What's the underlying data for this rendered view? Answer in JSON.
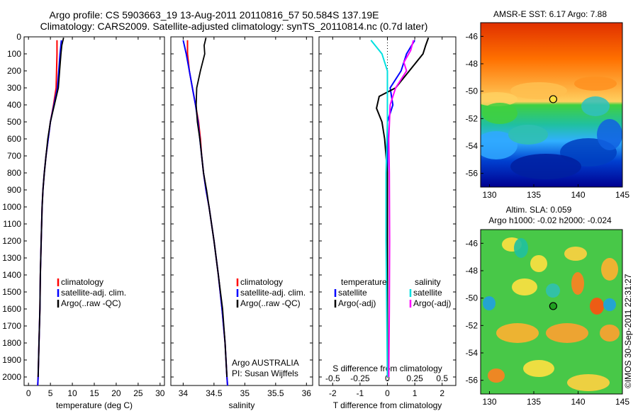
{
  "header": {
    "title_line1": "Argo profile: CS 5903663_19 13-Aug-2011 20110816_57 50.584S 137.19E",
    "title_line2": "Climatology: CARS2009. Satellite-adjusted climatology: synTS_20110814.nc (0.7d later)"
  },
  "annotations": {
    "argo_country": "Argo AUSTRALIA",
    "pi": "PI: Susan Wijffels",
    "watermark": "©IMOS 30-Sep-2011 22:31:27"
  },
  "colors": {
    "climatology": "#ff0000",
    "satellite": "#0000ff",
    "argo": "#000000",
    "t_sat": "#0000ff",
    "t_argo": "#000000",
    "s_sat": "#00e0e0",
    "s_argo": "#ff00ff"
  },
  "chart_data": [
    {
      "type": "line",
      "panel": "temperature",
      "xlabel": "temperature (deg C)",
      "ylabel": "",
      "xlim": [
        -1,
        31
      ],
      "ylim": [
        2050,
        0
      ],
      "xticks": [
        0,
        5,
        10,
        15,
        20,
        25,
        30
      ],
      "yticks": [
        0,
        100,
        200,
        300,
        400,
        500,
        600,
        700,
        800,
        900,
        1000,
        1100,
        1200,
        1300,
        1400,
        1500,
        1600,
        1700,
        1800,
        1900,
        2000
      ],
      "legend": [
        "climatology",
        "satellite-adj. clim.",
        "Argo(..raw -QC)"
      ],
      "series": [
        {
          "name": "climatology",
          "points": [
            [
              6.5,
              20
            ],
            [
              6.5,
              100
            ],
            [
              6.4,
              200
            ],
            [
              6.3,
              300
            ],
            [
              5.7,
              400
            ],
            [
              5.0,
              500
            ],
            [
              4.5,
              600
            ],
            [
              4.0,
              700
            ],
            [
              3.6,
              800
            ],
            [
              3.3,
              900
            ],
            [
              3.1,
              1000
            ],
            [
              2.9,
              1200
            ],
            [
              2.7,
              1400
            ],
            [
              2.6,
              1600
            ],
            [
              2.4,
              1800
            ],
            [
              2.2,
              2000
            ],
            [
              2.1,
              2050
            ]
          ]
        },
        {
          "name": "satellite-adj. clim.",
          "points": [
            [
              7.5,
              20
            ],
            [
              7.2,
              100
            ],
            [
              6.9,
              200
            ],
            [
              6.6,
              300
            ],
            [
              5.8,
              400
            ],
            [
              5.0,
              500
            ],
            [
              4.5,
              600
            ],
            [
              4.0,
              700
            ],
            [
              3.6,
              800
            ],
            [
              3.3,
              900
            ],
            [
              3.1,
              1000
            ],
            [
              2.9,
              1200
            ],
            [
              2.7,
              1400
            ],
            [
              2.6,
              1600
            ],
            [
              2.4,
              1800
            ],
            [
              2.2,
              2000
            ],
            [
              2.1,
              2050
            ]
          ]
        },
        {
          "name": "Argo(..raw -QC)",
          "points": [
            [
              8.0,
              5
            ],
            [
              7.6,
              50
            ],
            [
              7.4,
              100
            ],
            [
              7.1,
              200
            ],
            [
              6.8,
              300
            ],
            [
              5.9,
              400
            ],
            [
              5.0,
              500
            ],
            [
              4.4,
              600
            ],
            [
              4.0,
              700
            ],
            [
              3.6,
              800
            ],
            [
              3.3,
              900
            ],
            [
              3.1,
              1000
            ],
            [
              2.9,
              1200
            ],
            [
              2.7,
              1400
            ],
            [
              2.6,
              1600
            ],
            [
              2.4,
              1800
            ],
            [
              2.2,
              2000
            ]
          ]
        }
      ]
    },
    {
      "type": "line",
      "panel": "salinity",
      "xlabel": "salinity",
      "xlim": [
        33.8,
        36.1
      ],
      "ylim": [
        2050,
        0
      ],
      "xticks": [
        34,
        34.5,
        35,
        35.5,
        36
      ],
      "legend": [
        "climatology",
        "satellite-adj. clim.",
        "Argo(..raw -QC)"
      ],
      "series": [
        {
          "name": "climatology",
          "points": [
            [
              34.07,
              20
            ],
            [
              34.07,
              100
            ],
            [
              34.1,
              200
            ],
            [
              34.15,
              300
            ],
            [
              34.2,
              400
            ],
            [
              34.25,
              500
            ],
            [
              34.28,
              600
            ],
            [
              34.3,
              700
            ],
            [
              34.33,
              800
            ],
            [
              34.37,
              900
            ],
            [
              34.42,
              1000
            ],
            [
              34.5,
              1200
            ],
            [
              34.57,
              1400
            ],
            [
              34.63,
              1600
            ],
            [
              34.68,
              1800
            ],
            [
              34.71,
              2000
            ],
            [
              34.72,
              2050
            ]
          ]
        },
        {
          "name": "satellite-adj. clim.",
          "points": [
            [
              34.0,
              20
            ],
            [
              34.05,
              100
            ],
            [
              34.1,
              200
            ],
            [
              34.15,
              300
            ],
            [
              34.2,
              400
            ],
            [
              34.24,
              500
            ],
            [
              34.27,
              600
            ],
            [
              34.3,
              700
            ],
            [
              34.33,
              800
            ],
            [
              34.37,
              900
            ],
            [
              34.42,
              1000
            ],
            [
              34.5,
              1200
            ],
            [
              34.57,
              1400
            ],
            [
              34.63,
              1600
            ],
            [
              34.68,
              1800
            ],
            [
              34.71,
              2000
            ],
            [
              34.72,
              2050
            ]
          ]
        },
        {
          "name": "Argo(..raw -QC)",
          "points": [
            [
              34.37,
              5
            ],
            [
              34.34,
              50
            ],
            [
              34.35,
              100
            ],
            [
              34.28,
              200
            ],
            [
              34.22,
              300
            ],
            [
              34.21,
              400
            ],
            [
              34.23,
              500
            ],
            [
              34.27,
              600
            ],
            [
              34.3,
              700
            ],
            [
              34.33,
              800
            ],
            [
              34.38,
              900
            ],
            [
              34.42,
              1000
            ],
            [
              34.5,
              1200
            ],
            [
              34.57,
              1400
            ],
            [
              34.64,
              1600
            ],
            [
              34.68,
              1800
            ],
            [
              34.71,
              2000
            ]
          ]
        }
      ]
    },
    {
      "type": "line",
      "panel": "difference",
      "xlabel": "T difference from climatology",
      "x2label": "S difference from climatology",
      "xlim": [
        -2.5,
        2.5
      ],
      "ylim": [
        2050,
        0
      ],
      "xticks": [
        -2,
        -1,
        0,
        1,
        2
      ],
      "x2ticks": [
        "-0.5",
        "-0.25",
        "0",
        "0.25",
        "0.5"
      ],
      "legend_title_t": "temperature",
      "legend_title_s": "salinity",
      "legend": [
        "satellite",
        "Argo(-adj)",
        "satellite",
        "Argo(-adj)"
      ],
      "series": [
        {
          "name": "satellite",
          "points": [
            [
              1.0,
              20
            ],
            [
              0.7,
              100
            ],
            [
              0.5,
              200
            ],
            [
              0.1,
              300
            ],
            [
              0.2,
              400
            ],
            [
              0.0,
              500
            ],
            [
              0.0,
              700
            ],
            [
              0.0,
              1000
            ],
            [
              0.0,
              2000
            ]
          ]
        },
        {
          "name": "Argo(-adj)",
          "points": [
            [
              1.5,
              5
            ],
            [
              1.4,
              50
            ],
            [
              1.3,
              100
            ],
            [
              0.8,
              200
            ],
            [
              0.3,
              300
            ],
            [
              -0.3,
              350
            ],
            [
              -0.4,
              420
            ],
            [
              -0.2,
              500
            ],
            [
              -0.1,
              600
            ],
            [
              0.0,
              800
            ],
            [
              0.0,
              1000
            ],
            [
              0.0,
              2000
            ]
          ]
        },
        {
          "name": "satellite",
          "points": [
            [
              -0.6,
              20
            ],
            [
              -0.2,
              100
            ],
            [
              0.0,
              200
            ],
            [
              0.0,
              300
            ],
            [
              0.0,
              500
            ],
            [
              -0.05,
              800
            ],
            [
              -0.05,
              1200
            ],
            [
              0.0,
              2000
            ]
          ]
        },
        {
          "name": "Argo(-adj)",
          "points": [
            [
              0.95,
              20
            ],
            [
              0.85,
              80
            ],
            [
              0.6,
              150
            ],
            [
              0.7,
              200
            ],
            [
              0.3,
              300
            ],
            [
              0.1,
              400
            ],
            [
              0.05,
              600
            ],
            [
              0.07,
              800
            ],
            [
              0.08,
              1200
            ],
            [
              0.07,
              1600
            ],
            [
              0.05,
              2000
            ]
          ]
        }
      ]
    },
    {
      "type": "heatmap",
      "panel": "sst_map",
      "title": "AMSR-E SST: 6.17 Argo: 7.88",
      "xticks": [
        130,
        135,
        140,
        145
      ],
      "yticks": [
        -46,
        -48,
        -50,
        -52,
        -54,
        -56
      ],
      "xlim": [
        129,
        145
      ],
      "ylim": [
        -57,
        -45
      ],
      "argo_position": [
        137.19,
        -50.584
      ]
    },
    {
      "type": "heatmap",
      "panel": "sla_map",
      "title_line1": "Altim. SLA: 0.059",
      "title_line2": "Argo h1000: -0.02 h2000: -0.024",
      "xticks": [
        130,
        135,
        140,
        145
      ],
      "yticks": [
        -46,
        -48,
        -50,
        -52,
        -54,
        -56
      ],
      "xlim": [
        129,
        145
      ],
      "ylim": [
        -57,
        -45
      ],
      "argo_position": [
        137.19,
        -50.584
      ]
    }
  ]
}
